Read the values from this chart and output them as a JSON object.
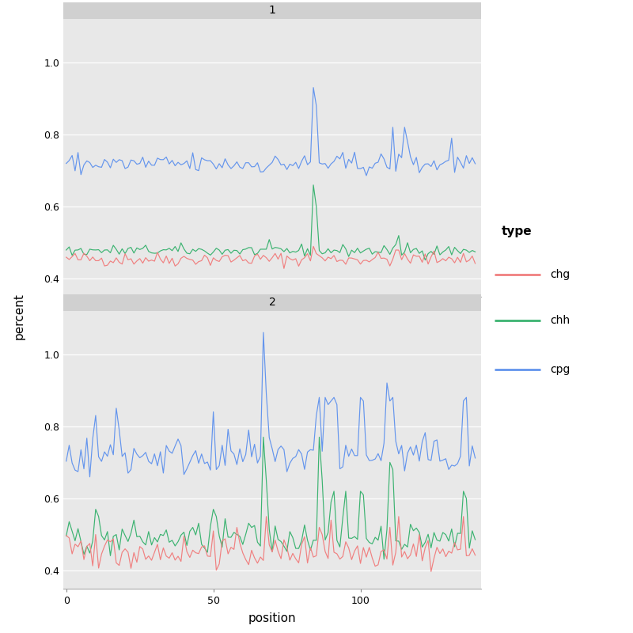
{
  "panel1_title": "1",
  "panel2_title": "2",
  "xlabel": "position",
  "ylabel": "percent",
  "legend_title": "type",
  "legend_labels": [
    "chg",
    "chh",
    "cpg"
  ],
  "colors": {
    "chg": "#F08080",
    "chh": "#3CB371",
    "cpg": "#6495ED"
  },
  "ylim": [
    0.35,
    1.12
  ],
  "yticks": [
    0.4,
    0.6,
    0.8,
    1.0
  ],
  "xticks": [
    0,
    50,
    100
  ],
  "n_points": 140,
  "background_color": "#E8E8E8",
  "panel_header_color": "#D0D0D0",
  "grid_color": "#FFFFFF",
  "fig_background": "#FFFFFF",
  "title_fontsize": 10,
  "axis_fontsize": 11,
  "tick_fontsize": 9,
  "legend_fontsize": 10,
  "line_width": 0.85
}
